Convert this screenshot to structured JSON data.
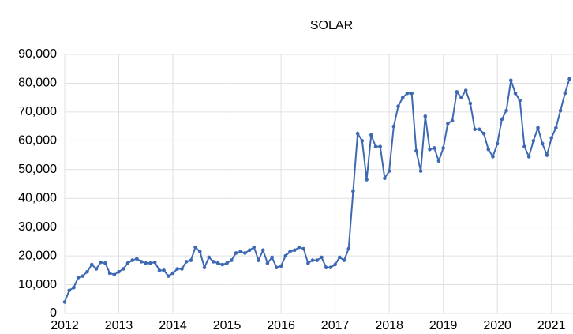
{
  "chart_data": {
    "type": "line",
    "title": "SOLAR",
    "categories": [
      "2012",
      null,
      null,
      null,
      null,
      null,
      null,
      null,
      null,
      null,
      null,
      null,
      "2013",
      null,
      null,
      null,
      null,
      null,
      null,
      null,
      null,
      null,
      null,
      null,
      "2014",
      null,
      null,
      null,
      null,
      null,
      null,
      null,
      null,
      null,
      null,
      null,
      "2015",
      null,
      null,
      null,
      null,
      null,
      null,
      null,
      null,
      null,
      null,
      null,
      "2016",
      null,
      null,
      null,
      null,
      null,
      null,
      null,
      null,
      null,
      null,
      null,
      "2017",
      null,
      null,
      null,
      null,
      null,
      null,
      null,
      null,
      null,
      null,
      null,
      "2018",
      null,
      null,
      null,
      null,
      null,
      null,
      null,
      null,
      null,
      null,
      null,
      "2019",
      null,
      null,
      null,
      null,
      null,
      null,
      null,
      null,
      null,
      null,
      null,
      "2020",
      null,
      null,
      null,
      null,
      null,
      null,
      null,
      null,
      null,
      null,
      null,
      "2021",
      null,
      null,
      null,
      null
    ],
    "series": [
      {
        "name": "SOLAR",
        "color": "#3d69b3",
        "values": [
          4000,
          8000,
          9000,
          12500,
          13000,
          14500,
          17000,
          15500,
          17800,
          17500,
          14000,
          13500,
          14500,
          15500,
          17500,
          18500,
          19000,
          18000,
          17500,
          17500,
          17800,
          15000,
          15000,
          13000,
          14000,
          15500,
          15500,
          18000,
          18500,
          23000,
          21500,
          16000,
          19500,
          18000,
          17500,
          17000,
          17500,
          18500,
          21000,
          21500,
          21000,
          22000,
          23000,
          18500,
          22000,
          17500,
          19500,
          16000,
          16500,
          20000,
          21500,
          22000,
          23000,
          22500,
          17500,
          18500,
          18500,
          19500,
          16000,
          16000,
          17000,
          19500,
          18500,
          22500,
          42500,
          62500,
          60000,
          46500,
          62000,
          58000,
          58000,
          47000,
          49500,
          65000,
          72000,
          75000,
          76500,
          76500,
          56500,
          49500,
          68500,
          57000,
          57500,
          53000,
          57500,
          66000,
          67000,
          77000,
          75000,
          77500,
          73000,
          64000,
          64000,
          62500,
          57000,
          54500,
          59000,
          67500,
          70500,
          81000,
          76500,
          74000,
          58000,
          54500,
          60000,
          64500,
          59000,
          55000,
          61000,
          64500,
          70500,
          76500,
          81500
        ]
      }
    ],
    "ylim": [
      0,
      90000
    ],
    "yticks": [
      0,
      {
        "value": 10000,
        "label": "10,000"
      },
      {
        "value": 20000,
        "label": "20,000"
      },
      {
        "value": 30000,
        "label": "30,000"
      },
      {
        "value": 40000,
        "label": "40,000"
      },
      {
        "value": 50000,
        "label": "50,000"
      },
      {
        "value": 60000,
        "label": "60,000"
      },
      {
        "value": 70000,
        "label": "70,000"
      },
      {
        "value": 80000,
        "label": "80,000"
      },
      {
        "value": 90000,
        "label": "90,000"
      }
    ],
    "grid": true
  }
}
